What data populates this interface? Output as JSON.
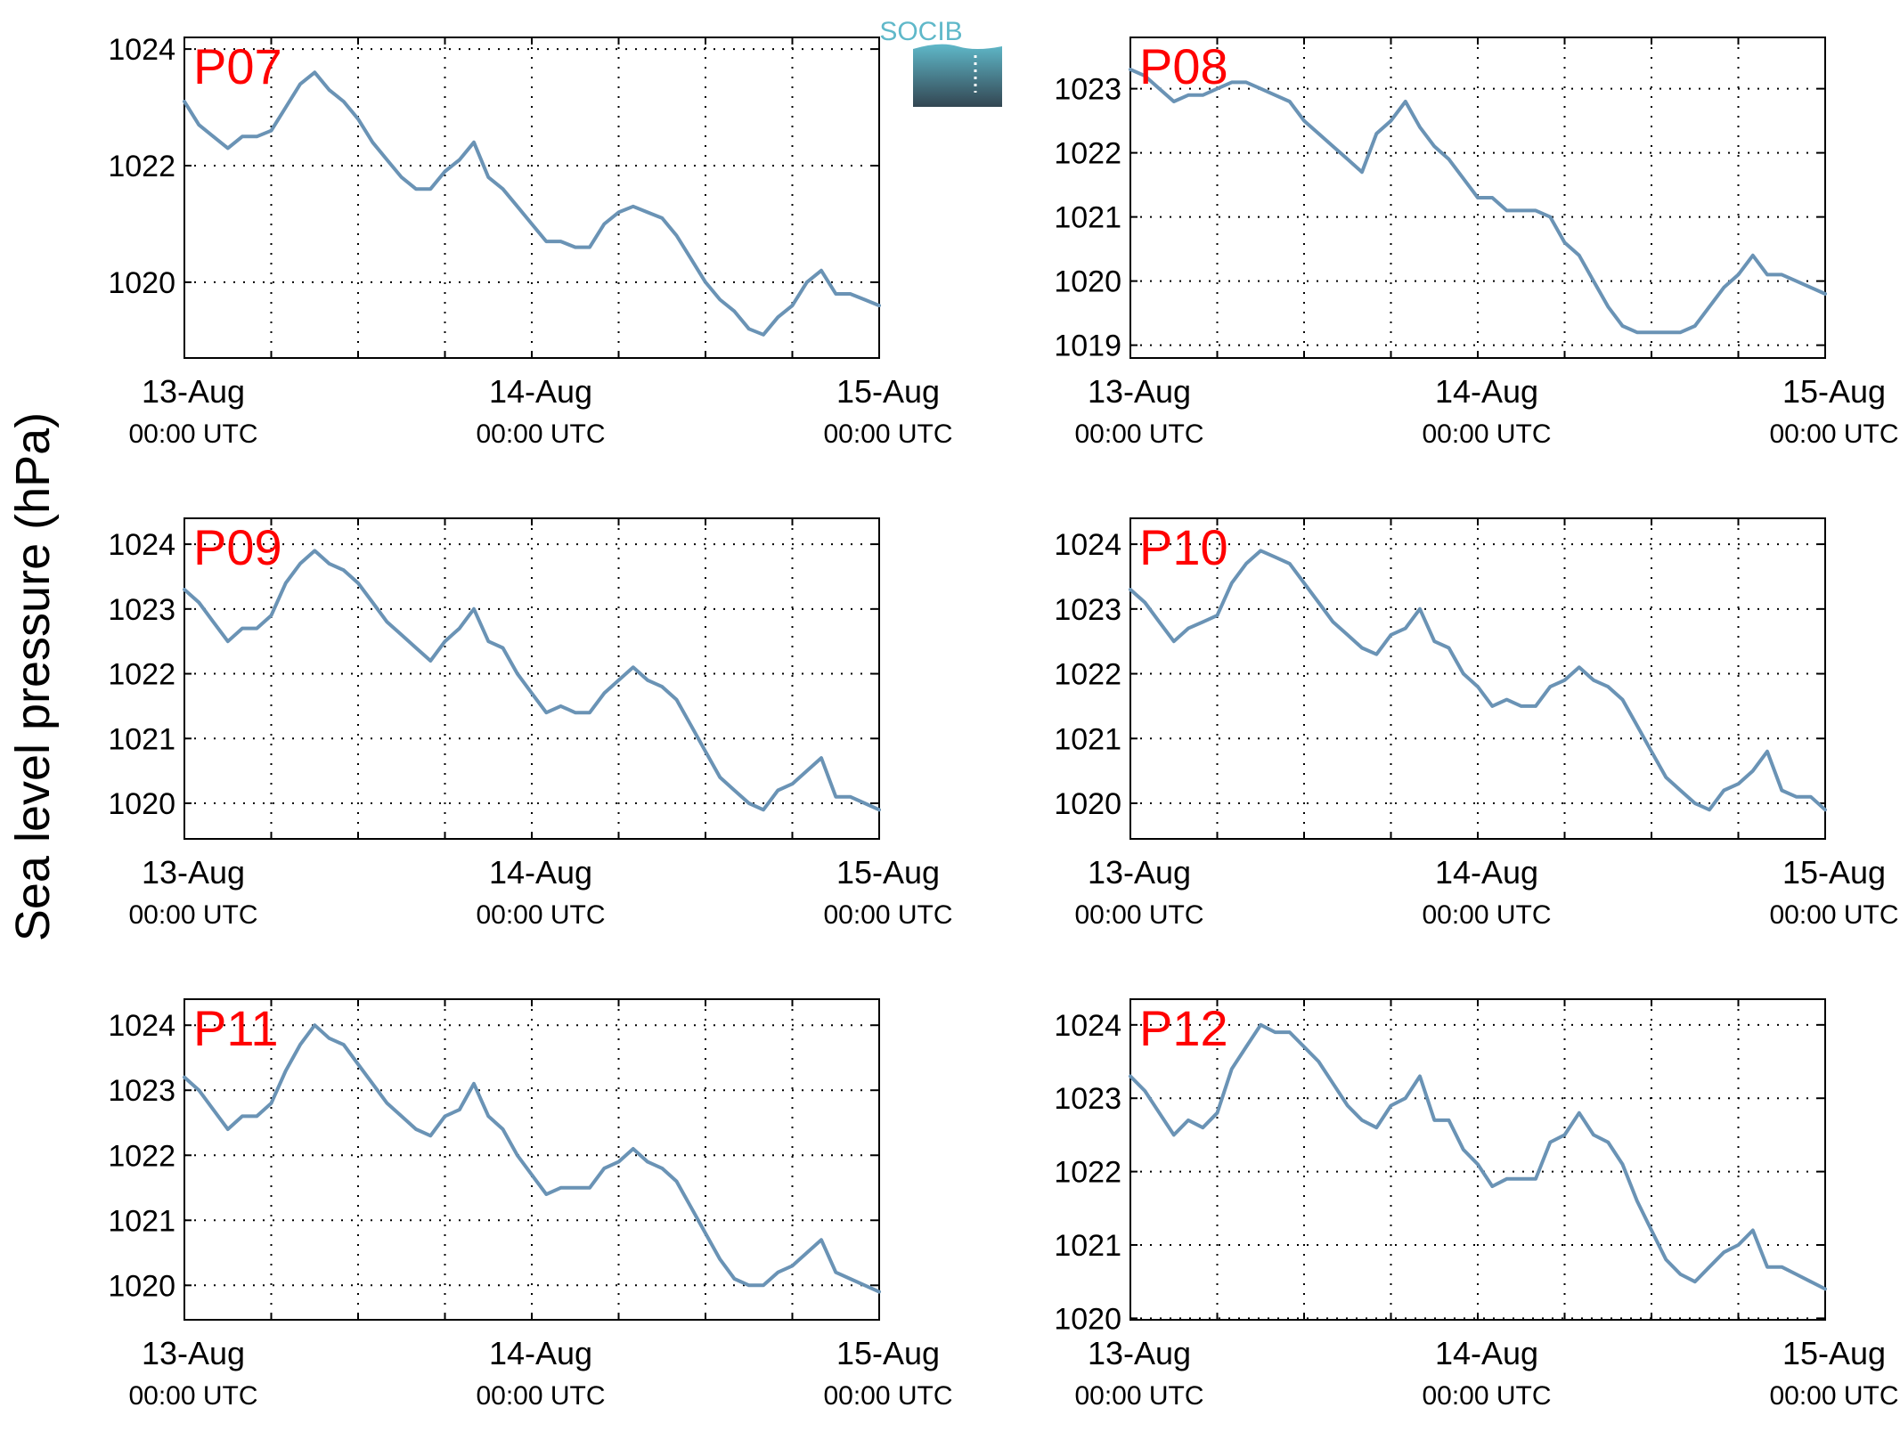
{
  "figure": {
    "ylabel": "Sea level pressure (hPa)",
    "logo_text": "SOCIB",
    "colors": {
      "line": "#6a93b5",
      "panel_label": "#ff0000",
      "axis": "#000000",
      "grid": "#000000",
      "logo_top": "#5fb8c9",
      "logo_bottom": "#334652"
    }
  },
  "chart_data": [
    {
      "type": "line",
      "panel_label": "P07",
      "x_ticks": [
        {
          "date": "13-Aug",
          "time": "00:00 UTC"
        },
        {
          "date": "14-Aug",
          "time": "00:00 UTC"
        },
        {
          "date": "15-Aug",
          "time": "00:00 UTC"
        }
      ],
      "xlim_hours": [
        0,
        48
      ],
      "grid": true,
      "ylim": [
        1018.7,
        1024.2
      ],
      "yticks": [
        1020,
        1022,
        1024
      ],
      "series": [
        {
          "x_hours": [
            0,
            1,
            2,
            3,
            4,
            5,
            6,
            7,
            8,
            9,
            10,
            11,
            12,
            13,
            14,
            15,
            16,
            17,
            18,
            19,
            20,
            21,
            22,
            23,
            24,
            25,
            26,
            27,
            28,
            29,
            30,
            31,
            32,
            33,
            34,
            35,
            36,
            37,
            38,
            39,
            40,
            41,
            42,
            43,
            44,
            45,
            46,
            47,
            48
          ],
          "values": [
            1023.1,
            1022.7,
            1022.5,
            1022.3,
            1022.5,
            1022.5,
            1022.6,
            1023.0,
            1023.4,
            1023.6,
            1023.3,
            1023.1,
            1022.8,
            1022.4,
            1022.1,
            1021.8,
            1021.6,
            1021.6,
            1021.9,
            1022.1,
            1022.4,
            1021.8,
            1021.6,
            1021.3,
            1021.0,
            1020.7,
            1020.7,
            1020.6,
            1020.6,
            1021.0,
            1021.2,
            1021.3,
            1021.2,
            1021.1,
            1020.8,
            1020.4,
            1020.0,
            1019.7,
            1019.5,
            1019.2,
            1019.1,
            1019.4,
            1019.6,
            1020.0,
            1020.2,
            1019.8,
            1019.8,
            1019.7,
            1019.6
          ]
        }
      ]
    },
    {
      "type": "line",
      "panel_label": "P08",
      "x_ticks": [
        {
          "date": "13-Aug",
          "time": "00:00 UTC"
        },
        {
          "date": "14-Aug",
          "time": "00:00 UTC"
        },
        {
          "date": "15-Aug",
          "time": "00:00 UTC"
        }
      ],
      "xlim_hours": [
        0,
        48
      ],
      "grid": true,
      "ylim": [
        1018.8,
        1023.8
      ],
      "yticks": [
        1019,
        1020,
        1021,
        1022,
        1023
      ],
      "series": [
        {
          "x_hours": [
            0,
            1,
            2,
            3,
            4,
            5,
            6,
            7,
            8,
            9,
            10,
            11,
            12,
            13,
            14,
            15,
            16,
            17,
            18,
            19,
            20,
            21,
            22,
            23,
            24,
            25,
            26,
            27,
            28,
            29,
            30,
            31,
            32,
            33,
            34,
            35,
            36,
            37,
            38,
            39,
            40,
            41,
            42,
            43,
            44,
            45,
            46,
            47,
            48
          ],
          "values": [
            1023.3,
            1023.2,
            1023.0,
            1022.8,
            1022.9,
            1022.9,
            1023.0,
            1023.1,
            1023.1,
            1023.0,
            1022.9,
            1022.8,
            1022.5,
            1022.3,
            1022.1,
            1021.9,
            1021.7,
            1022.3,
            1022.5,
            1022.8,
            1022.4,
            1022.1,
            1021.9,
            1021.6,
            1021.3,
            1021.3,
            1021.1,
            1021.1,
            1021.1,
            1021.0,
            1020.6,
            1020.4,
            1020.0,
            1019.6,
            1019.3,
            1019.2,
            1019.2,
            1019.2,
            1019.2,
            1019.3,
            1019.6,
            1019.9,
            1020.1,
            1020.4,
            1020.1,
            1020.1,
            1020.0,
            1019.9,
            1019.8
          ]
        }
      ]
    },
    {
      "type": "line",
      "panel_label": "P09",
      "x_ticks": [
        {
          "date": "13-Aug",
          "time": "00:00 UTC"
        },
        {
          "date": "14-Aug",
          "time": "00:00 UTC"
        },
        {
          "date": "15-Aug",
          "time": "00:00 UTC"
        }
      ],
      "xlim_hours": [
        0,
        48
      ],
      "grid": true,
      "ylim": [
        1019.45,
        1024.4
      ],
      "yticks": [
        1020,
        1021,
        1022,
        1023,
        1024
      ],
      "series": [
        {
          "x_hours": [
            0,
            1,
            2,
            3,
            4,
            5,
            6,
            7,
            8,
            9,
            10,
            11,
            12,
            13,
            14,
            15,
            16,
            17,
            18,
            19,
            20,
            21,
            22,
            23,
            24,
            25,
            26,
            27,
            28,
            29,
            30,
            31,
            32,
            33,
            34,
            35,
            36,
            37,
            38,
            39,
            40,
            41,
            42,
            43,
            44,
            45,
            46,
            47,
            48
          ],
          "values": [
            1023.3,
            1023.1,
            1022.8,
            1022.5,
            1022.7,
            1022.7,
            1022.9,
            1023.4,
            1023.7,
            1023.9,
            1023.7,
            1023.6,
            1023.4,
            1023.1,
            1022.8,
            1022.6,
            1022.4,
            1022.2,
            1022.5,
            1022.7,
            1023.0,
            1022.5,
            1022.4,
            1022.0,
            1021.7,
            1021.4,
            1021.5,
            1021.4,
            1021.4,
            1021.7,
            1021.9,
            1022.1,
            1021.9,
            1021.8,
            1021.6,
            1021.2,
            1020.8,
            1020.4,
            1020.2,
            1020.0,
            1019.9,
            1020.2,
            1020.3,
            1020.5,
            1020.7,
            1020.1,
            1020.1,
            1020.0,
            1019.9
          ]
        }
      ]
    },
    {
      "type": "line",
      "panel_label": "P10",
      "x_ticks": [
        {
          "date": "13-Aug",
          "time": "00:00 UTC"
        },
        {
          "date": "14-Aug",
          "time": "00:00 UTC"
        },
        {
          "date": "15-Aug",
          "time": "00:00 UTC"
        }
      ],
      "xlim_hours": [
        0,
        48
      ],
      "grid": true,
      "ylim": [
        1019.45,
        1024.4
      ],
      "yticks": [
        1020,
        1021,
        1022,
        1023,
        1024
      ],
      "series": [
        {
          "x_hours": [
            0,
            1,
            2,
            3,
            4,
            5,
            6,
            7,
            8,
            9,
            10,
            11,
            12,
            13,
            14,
            15,
            16,
            17,
            18,
            19,
            20,
            21,
            22,
            23,
            24,
            25,
            26,
            27,
            28,
            29,
            30,
            31,
            32,
            33,
            34,
            35,
            36,
            37,
            38,
            39,
            40,
            41,
            42,
            43,
            44,
            45,
            46,
            47,
            48
          ],
          "values": [
            1023.3,
            1023.1,
            1022.8,
            1022.5,
            1022.7,
            1022.8,
            1022.9,
            1023.4,
            1023.7,
            1023.9,
            1023.8,
            1023.7,
            1023.4,
            1023.1,
            1022.8,
            1022.6,
            1022.4,
            1022.3,
            1022.6,
            1022.7,
            1023.0,
            1022.5,
            1022.4,
            1022.0,
            1021.8,
            1021.5,
            1021.6,
            1021.5,
            1021.5,
            1021.8,
            1021.9,
            1022.1,
            1021.9,
            1021.8,
            1021.6,
            1021.2,
            1020.8,
            1020.4,
            1020.2,
            1020.0,
            1019.9,
            1020.2,
            1020.3,
            1020.5,
            1020.8,
            1020.2,
            1020.1,
            1020.1,
            1019.9
          ]
        }
      ]
    },
    {
      "type": "line",
      "panel_label": "P11",
      "x_ticks": [
        {
          "date": "13-Aug",
          "time": "00:00 UTC"
        },
        {
          "date": "14-Aug",
          "time": "00:00 UTC"
        },
        {
          "date": "15-Aug",
          "time": "00:00 UTC"
        }
      ],
      "xlim_hours": [
        0,
        48
      ],
      "grid": true,
      "ylim": [
        1019.47,
        1024.4
      ],
      "yticks": [
        1020,
        1021,
        1022,
        1023,
        1024
      ],
      "series": [
        {
          "x_hours": [
            0,
            1,
            2,
            3,
            4,
            5,
            6,
            7,
            8,
            9,
            10,
            11,
            12,
            13,
            14,
            15,
            16,
            17,
            18,
            19,
            20,
            21,
            22,
            23,
            24,
            25,
            26,
            27,
            28,
            29,
            30,
            31,
            32,
            33,
            34,
            35,
            36,
            37,
            38,
            39,
            40,
            41,
            42,
            43,
            44,
            45,
            46,
            47,
            48
          ],
          "values": [
            1023.2,
            1023.0,
            1022.7,
            1022.4,
            1022.6,
            1022.6,
            1022.8,
            1023.3,
            1023.7,
            1024.0,
            1023.8,
            1023.7,
            1023.4,
            1023.1,
            1022.8,
            1022.6,
            1022.4,
            1022.3,
            1022.6,
            1022.7,
            1023.1,
            1022.6,
            1022.4,
            1022.0,
            1021.7,
            1021.4,
            1021.5,
            1021.5,
            1021.5,
            1021.8,
            1021.9,
            1022.1,
            1021.9,
            1021.8,
            1021.6,
            1021.2,
            1020.8,
            1020.4,
            1020.1,
            1020.0,
            1020.0,
            1020.2,
            1020.3,
            1020.5,
            1020.7,
            1020.2,
            1020.1,
            1020.0,
            1019.9
          ]
        }
      ]
    },
    {
      "type": "line",
      "panel_label": "P12",
      "x_ticks": [
        {
          "date": "13-Aug",
          "time": "00:00 UTC"
        },
        {
          "date": "14-Aug",
          "time": "00:00 UTC"
        },
        {
          "date": "15-Aug",
          "time": "00:00 UTC"
        }
      ],
      "xlim_hours": [
        0,
        48
      ],
      "grid": true,
      "ylim": [
        1019.98,
        1024.35
      ],
      "yticks": [
        1020,
        1021,
        1022,
        1023,
        1024
      ],
      "series": [
        {
          "x_hours": [
            0,
            1,
            2,
            3,
            4,
            5,
            6,
            7,
            8,
            9,
            10,
            11,
            12,
            13,
            14,
            15,
            16,
            17,
            18,
            19,
            20,
            21,
            22,
            23,
            24,
            25,
            26,
            27,
            28,
            29,
            30,
            31,
            32,
            33,
            34,
            35,
            36,
            37,
            38,
            39,
            40,
            41,
            42,
            43,
            44,
            45,
            46,
            47,
            48
          ],
          "values": [
            1023.3,
            1023.1,
            1022.8,
            1022.5,
            1022.7,
            1022.6,
            1022.8,
            1023.4,
            1023.7,
            1024.0,
            1023.9,
            1023.9,
            1023.7,
            1023.5,
            1023.2,
            1022.9,
            1022.7,
            1022.6,
            1022.9,
            1023.0,
            1023.3,
            1022.7,
            1022.7,
            1022.3,
            1022.1,
            1021.8,
            1021.9,
            1021.9,
            1021.9,
            1022.4,
            1022.5,
            1022.8,
            1022.5,
            1022.4,
            1022.1,
            1021.6,
            1021.2,
            1020.8,
            1020.6,
            1020.5,
            1020.7,
            1020.9,
            1021.0,
            1021.2,
            1020.7,
            1020.7,
            1020.6,
            1020.5,
            1020.4
          ]
        }
      ]
    }
  ]
}
